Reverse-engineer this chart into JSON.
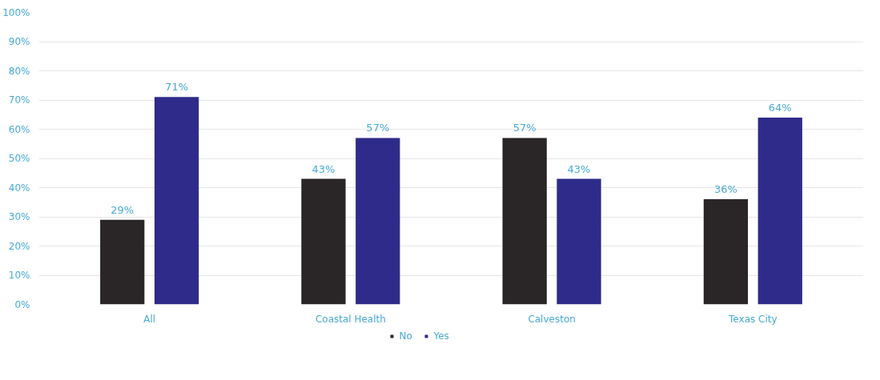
{
  "chart_data": {
    "type": "bar",
    "categories": [
      "All",
      "Coastal Health",
      "Calveston",
      "Texas City"
    ],
    "series": [
      {
        "name": "No",
        "color": "#2a2526",
        "values": [
          29,
          43,
          57,
          36
        ],
        "value_labels": [
          "29%",
          "43%",
          "57%",
          "36%"
        ]
      },
      {
        "name": "Yes",
        "color": "#2e2b8a",
        "values": [
          71,
          57,
          43,
          64
        ],
        "value_labels": [
          "71%",
          "57%",
          "43%",
          "64%"
        ]
      }
    ],
    "ylim": [
      0,
      100
    ],
    "yticks": [
      {
        "value": 0,
        "label": "0%"
      },
      {
        "value": 10,
        "label": "10%"
      },
      {
        "value": 20,
        "label": "20%"
      },
      {
        "value": 30,
        "label": "30%"
      },
      {
        "value": 40,
        "label": "40%"
      },
      {
        "value": 50,
        "label": "50%"
      },
      {
        "value": 60,
        "label": "60%"
      },
      {
        "value": 70,
        "label": "70%"
      },
      {
        "value": 80,
        "label": "80%"
      },
      {
        "value": 90,
        "label": "90%"
      },
      {
        "value": 100,
        "label": "100%"
      }
    ],
    "grid": "y",
    "legend": "bottom"
  }
}
